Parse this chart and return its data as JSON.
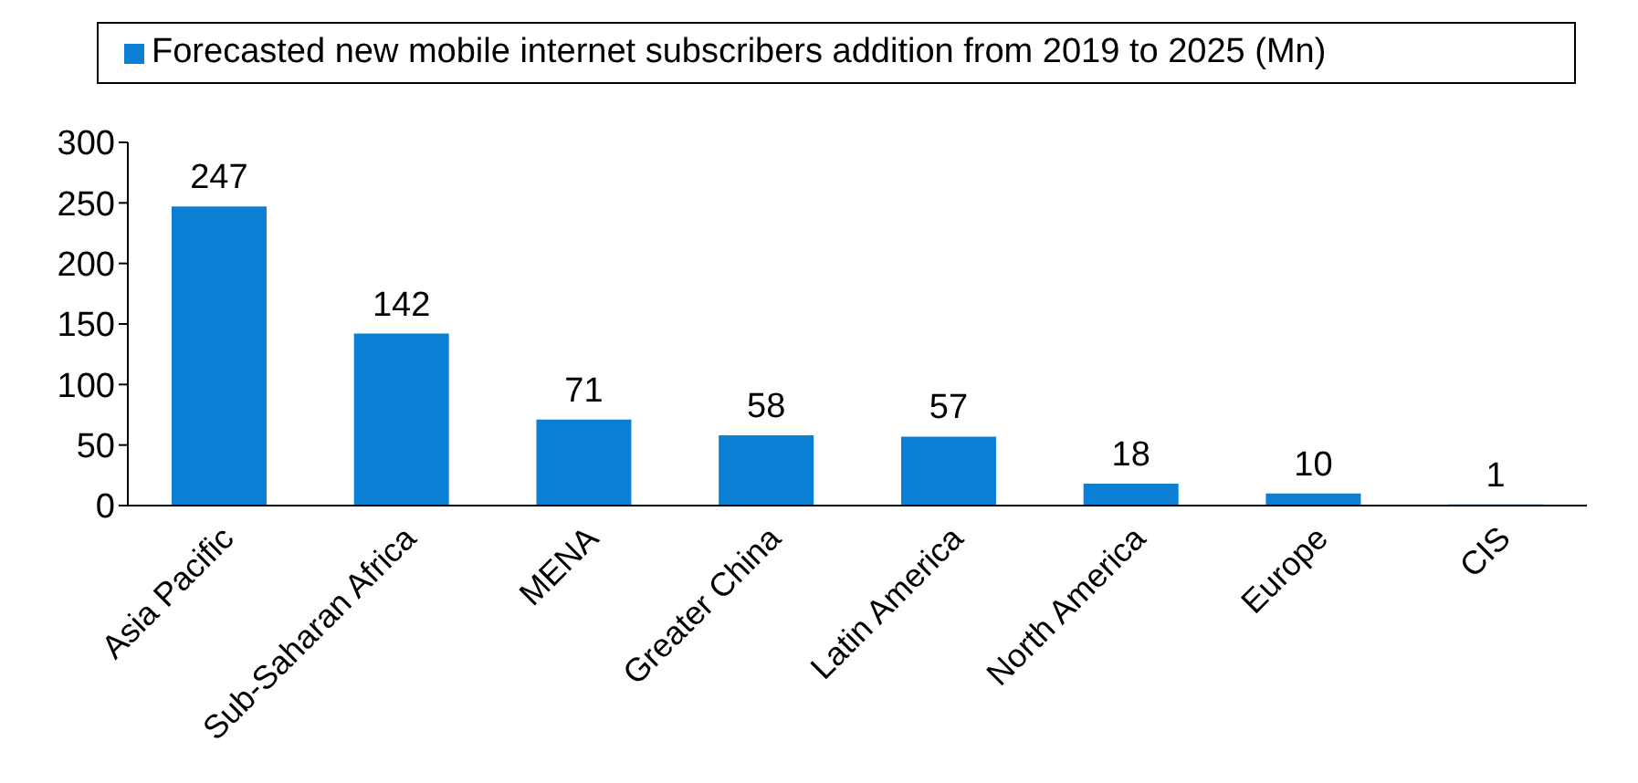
{
  "chart_data": {
    "type": "bar",
    "categories": [
      "Asia Pacific",
      "Sub-Saharan Africa",
      "MENA",
      "Greater China",
      "Latin America",
      "North America",
      "Europe",
      "CIS"
    ],
    "series": [
      {
        "name": "Forecasted new mobile internet subscribers addition from 2019 to 2025 (Mn)",
        "color": "#0a7fd4",
        "values": [
          247,
          142,
          71,
          58,
          57,
          18,
          10,
          1
        ]
      }
    ],
    "ylim": [
      0,
      300
    ],
    "yticks": [
      0,
      50,
      100,
      150,
      200,
      250,
      300
    ],
    "data_labels": true,
    "grid": false,
    "legend": "top"
  }
}
